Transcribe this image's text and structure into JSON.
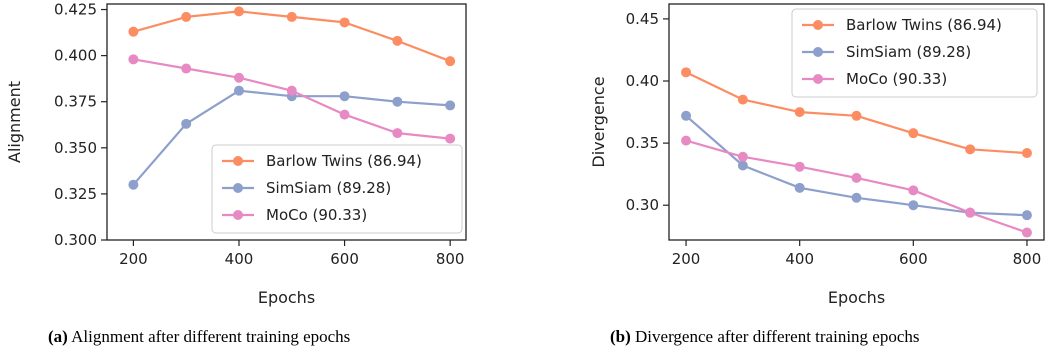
{
  "chart_data": [
    {
      "type": "line",
      "x": [
        200,
        300,
        400,
        500,
        600,
        700,
        800
      ],
      "xlabel": "Epochs",
      "ylabel": "Alignment",
      "xlim": [
        150,
        830
      ],
      "ylim": [
        0.3,
        0.428
      ],
      "xticks": [
        "200",
        "400",
        "600",
        "800"
      ],
      "yticks": [
        "0.300",
        "0.325",
        "0.350",
        "0.375",
        "0.400",
        "0.425"
      ],
      "legend_position": "lower-right",
      "series": [
        {
          "name": "Barlow Twins (86.94)",
          "color": "#fc8d62",
          "values": [
            0.413,
            0.421,
            0.424,
            0.421,
            0.418,
            0.408,
            0.397
          ]
        },
        {
          "name": "SimSiam (89.28)",
          "color": "#8da0cb",
          "values": [
            0.33,
            0.363,
            0.381,
            0.378,
            0.378,
            0.375,
            0.373
          ]
        },
        {
          "name": "MoCo (90.33)",
          "color": "#e78ac3",
          "values": [
            0.398,
            0.393,
            0.388,
            0.381,
            0.368,
            0.358,
            0.355
          ]
        }
      ],
      "caption_tag": "(a)",
      "caption_text": " Alignment after different training epochs"
    },
    {
      "type": "line",
      "x": [
        200,
        300,
        400,
        500,
        600,
        700,
        800
      ],
      "xlabel": "Epochs",
      "ylabel": "Divergence",
      "xlim": [
        170,
        830
      ],
      "ylim": [
        0.272,
        0.462
      ],
      "xticks": [
        "200",
        "400",
        "600",
        "800"
      ],
      "yticks": [
        "0.30",
        "0.35",
        "0.40",
        "0.45"
      ],
      "legend_position": "upper-right",
      "series": [
        {
          "name": "Barlow Twins (86.94)",
          "color": "#fc8d62",
          "values": [
            0.407,
            0.385,
            0.375,
            0.372,
            0.358,
            0.345,
            0.342
          ]
        },
        {
          "name": "SimSiam (89.28)",
          "color": "#8da0cb",
          "values": [
            0.372,
            0.332,
            0.314,
            0.306,
            0.3,
            0.294,
            0.292
          ]
        },
        {
          "name": "MoCo (90.33)",
          "color": "#e78ac3",
          "values": [
            0.352,
            0.339,
            0.331,
            0.322,
            0.312,
            0.294,
            0.278
          ]
        }
      ],
      "caption_tag": "(b)",
      "caption_text": " Divergence after different training epochs"
    }
  ]
}
